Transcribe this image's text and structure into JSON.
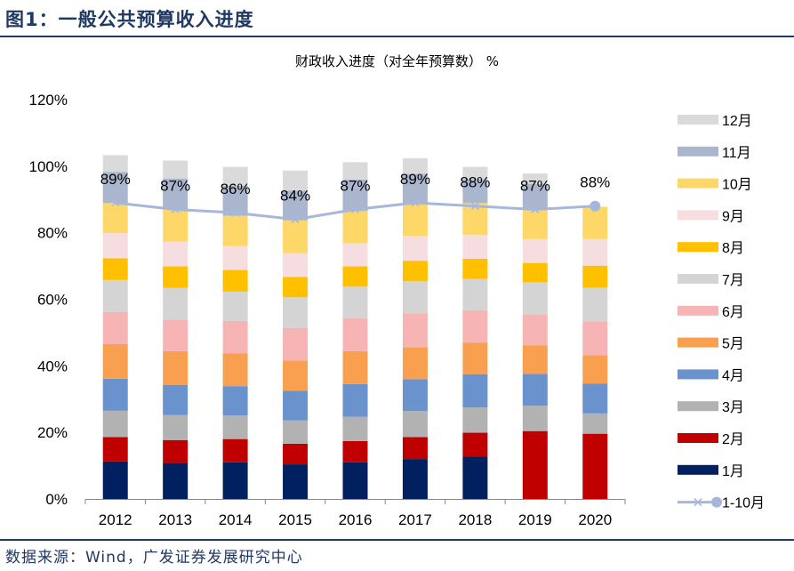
{
  "figure_title": "图1：一般公共预算收入进度",
  "source": "数据来源：Wind，广发证券发展研究中心",
  "colors": {
    "title": "#1F3864",
    "months": [
      "#002060",
      "#C00000",
      "#B2B2B2",
      "#6A92CC",
      "#F8A050",
      "#F7B4B4",
      "#D4D4D4",
      "#FFC000",
      "#F5DDE0",
      "#FDD868",
      "#AAB6CE",
      "#DADADA"
    ],
    "line": "#A7B7DB"
  },
  "chart_data": {
    "type": "bar",
    "stacked": true,
    "title": "财政收入进度（对全年预算数） %",
    "categories": [
      "2012",
      "2013",
      "2014",
      "2015",
      "2016",
      "2017",
      "2018",
      "2019",
      "2020"
    ],
    "ylim": [
      0,
      120
    ],
    "yticks": [
      "0%",
      "20%",
      "40%",
      "60%",
      "80%",
      "100%",
      "120%"
    ],
    "ytick_values": [
      0,
      20,
      40,
      60,
      80,
      100,
      120
    ],
    "legend_position": "right",
    "series": [
      {
        "name": "1月",
        "values": [
          11.3,
          10.8,
          11.0,
          10.4,
          11.0,
          12.0,
          12.8,
          0,
          0
        ]
      },
      {
        "name": "2月",
        "values": [
          7.3,
          6.9,
          7.0,
          6.2,
          6.4,
          6.6,
          7.1,
          20.4,
          19.6
        ]
      },
      {
        "name": "3月",
        "values": [
          7.9,
          7.5,
          7.1,
          7.0,
          7.3,
          7.8,
          7.6,
          7.6,
          6.1
        ]
      },
      {
        "name": "4月",
        "values": [
          9.6,
          9.1,
          8.8,
          8.9,
          9.8,
          9.6,
          10.0,
          9.6,
          9.0
        ]
      },
      {
        "name": "5月",
        "values": [
          10.4,
          10.1,
          9.8,
          9.1,
          9.9,
          9.6,
          9.5,
          8.6,
          8.5
        ]
      },
      {
        "name": "6月",
        "values": [
          9.7,
          9.5,
          9.8,
          9.8,
          9.9,
          10.2,
          9.7,
          9.3,
          10.1
        ]
      },
      {
        "name": "7月",
        "values": [
          9.6,
          9.5,
          8.8,
          9.2,
          9.5,
          9.6,
          9.4,
          9.6,
          10.2
        ]
      },
      {
        "name": "8月",
        "values": [
          6.5,
          6.5,
          6.5,
          6.1,
          6.1,
          6.2,
          6.1,
          5.8,
          6.6
        ]
      },
      {
        "name": "9月",
        "values": [
          7.6,
          7.4,
          7.2,
          7.2,
          7.0,
          7.5,
          7.1,
          7.2,
          8.0
        ]
      },
      {
        "name": "10月",
        "values": [
          9.0,
          9.7,
          9.1,
          9.8,
          9.6,
          9.7,
          9.6,
          9.2,
          9.7
        ]
      },
      {
        "name": "11月",
        "values": [
          9.4,
          9.3,
          9.0,
          8.9,
          9.5,
          8.9,
          7.2,
          7.4,
          0
        ]
      },
      {
        "name": "12月",
        "values": [
          5.0,
          5.4,
          5.7,
          6.1,
          5.2,
          4.7,
          3.7,
          3.1,
          0
        ]
      }
    ],
    "line": {
      "name": "1-10月",
      "values": [
        89,
        87,
        86,
        84,
        87,
        89,
        88,
        87,
        88
      ]
    },
    "line_labels": [
      "89%",
      "87%",
      "86%",
      "84%",
      "87%",
      "89%",
      "88%",
      "87%",
      "88%"
    ]
  }
}
